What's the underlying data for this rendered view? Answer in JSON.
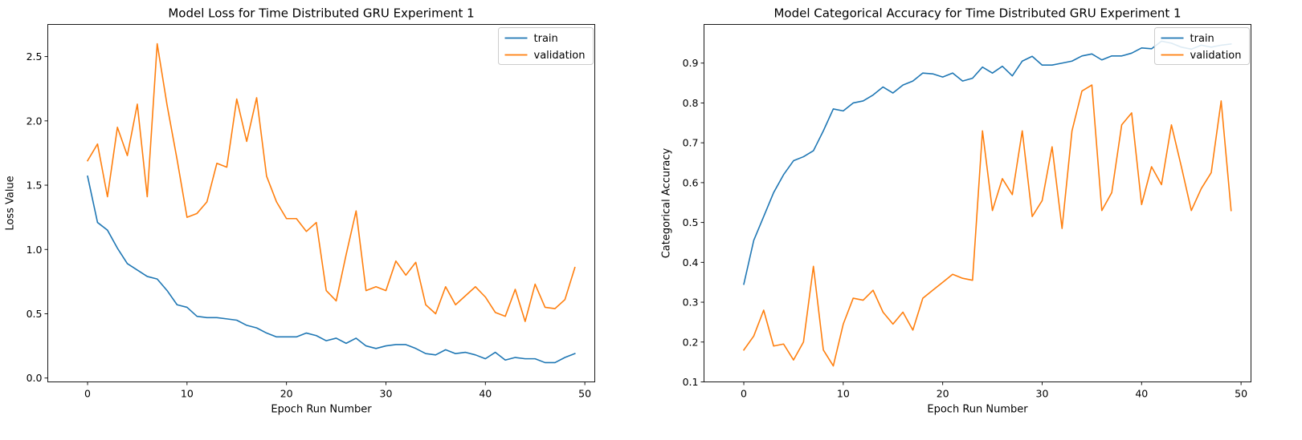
{
  "chart_data": [
    {
      "type": "line",
      "title": "Model Loss for Time Distributed GRU Experiment 1",
      "xlabel": "Epoch Run Number",
      "ylabel": "Loss Value",
      "xlim": [
        -4,
        51
      ],
      "ylim": [
        -0.03,
        2.75
      ],
      "xticks": [
        0,
        10,
        20,
        30,
        40,
        50
      ],
      "yticks": [
        0.0,
        0.5,
        1.0,
        1.5,
        2.0,
        2.5
      ],
      "ytick_labels": [
        "0.0",
        "0.5",
        "1.0",
        "1.5",
        "2.0",
        "2.5"
      ],
      "grid": false,
      "legend_position": "top-right",
      "x": [
        0,
        1,
        2,
        3,
        4,
        5,
        6,
        7,
        8,
        9,
        10,
        11,
        12,
        13,
        14,
        15,
        16,
        17,
        18,
        19,
        20,
        21,
        22,
        23,
        24,
        25,
        26,
        27,
        28,
        29,
        30,
        31,
        32,
        33,
        34,
        35,
        36,
        37,
        38,
        39,
        40,
        41,
        42,
        43,
        44,
        45,
        46,
        47,
        48,
        49
      ],
      "series": [
        {
          "name": "train",
          "color": "#1f77b4",
          "values": [
            1.57,
            1.21,
            1.15,
            1.01,
            0.89,
            0.84,
            0.79,
            0.77,
            0.68,
            0.57,
            0.55,
            0.48,
            0.47,
            0.47,
            0.46,
            0.45,
            0.41,
            0.39,
            0.35,
            0.32,
            0.32,
            0.32,
            0.35,
            0.33,
            0.29,
            0.31,
            0.27,
            0.31,
            0.25,
            0.23,
            0.25,
            0.26,
            0.26,
            0.23,
            0.19,
            0.18,
            0.22,
            0.19,
            0.2,
            0.18,
            0.15,
            0.2,
            0.14,
            0.16,
            0.15,
            0.15,
            0.12,
            0.12,
            0.16,
            0.19
          ]
        },
        {
          "name": "validation",
          "color": "#ff7f0e",
          "values": [
            1.69,
            1.82,
            1.41,
            1.95,
            1.73,
            2.13,
            1.41,
            2.6,
            2.12,
            1.7,
            1.25,
            1.28,
            1.37,
            1.67,
            1.64,
            2.17,
            1.84,
            2.18,
            1.57,
            1.37,
            1.24,
            1.24,
            1.14,
            1.21,
            0.68,
            0.6,
            0.96,
            1.3,
            0.68,
            0.71,
            0.68,
            0.91,
            0.8,
            0.9,
            0.57,
            0.5,
            0.71,
            0.57,
            0.64,
            0.71,
            0.63,
            0.51,
            0.48,
            0.69,
            0.44,
            0.73,
            0.55,
            0.54,
            0.61,
            0.86
          ]
        }
      ]
    },
    {
      "type": "line",
      "title": "Model Categorical Accuracy for Time Distributed GRU Experiment 1",
      "xlabel": "Epoch Run Number",
      "ylabel": "Categorical Accuracy",
      "xlim": [
        -4,
        51
      ],
      "ylim": [
        0.1,
        0.997
      ],
      "xticks": [
        0,
        10,
        20,
        30,
        40,
        50
      ],
      "yticks": [
        0.1,
        0.2,
        0.3,
        0.4,
        0.5,
        0.6,
        0.7,
        0.8,
        0.9
      ],
      "ytick_labels": [
        "0.1",
        "0.2",
        "0.3",
        "0.4",
        "0.5",
        "0.6",
        "0.7",
        "0.8",
        "0.9"
      ],
      "grid": false,
      "legend_position": "top-right",
      "x": [
        0,
        1,
        2,
        3,
        4,
        5,
        6,
        7,
        8,
        9,
        10,
        11,
        12,
        13,
        14,
        15,
        16,
        17,
        18,
        19,
        20,
        21,
        22,
        23,
        24,
        25,
        26,
        27,
        28,
        29,
        30,
        31,
        32,
        33,
        34,
        35,
        36,
        37,
        38,
        39,
        40,
        41,
        42,
        43,
        44,
        45,
        46,
        47,
        48,
        49
      ],
      "series": [
        {
          "name": "train",
          "color": "#1f77b4",
          "values": [
            0.345,
            0.455,
            0.515,
            0.575,
            0.62,
            0.655,
            0.665,
            0.68,
            0.73,
            0.785,
            0.78,
            0.8,
            0.805,
            0.82,
            0.84,
            0.825,
            0.845,
            0.855,
            0.875,
            0.873,
            0.865,
            0.875,
            0.855,
            0.862,
            0.89,
            0.875,
            0.892,
            0.868,
            0.905,
            0.917,
            0.895,
            0.895,
            0.9,
            0.905,
            0.918,
            0.923,
            0.908,
            0.918,
            0.918,
            0.925,
            0.938,
            0.936,
            0.955,
            0.95,
            0.94,
            0.935,
            0.945,
            0.94,
            0.945,
            0.948
          ]
        },
        {
          "name": "validation",
          "color": "#ff7f0e",
          "values": [
            0.18,
            0.215,
            0.28,
            0.19,
            0.195,
            0.155,
            0.2,
            0.39,
            0.18,
            0.14,
            0.245,
            0.31,
            0.305,
            0.33,
            0.275,
            0.245,
            0.275,
            0.23,
            0.31,
            0.33,
            0.35,
            0.37,
            0.36,
            0.355,
            0.73,
            0.53,
            0.61,
            0.57,
            0.73,
            0.515,
            0.555,
            0.69,
            0.485,
            0.73,
            0.83,
            0.845,
            0.53,
            0.575,
            0.745,
            0.775,
            0.545,
            0.64,
            0.595,
            0.745,
            0.64,
            0.53,
            0.585,
            0.625,
            0.805,
            0.53
          ]
        }
      ]
    }
  ]
}
